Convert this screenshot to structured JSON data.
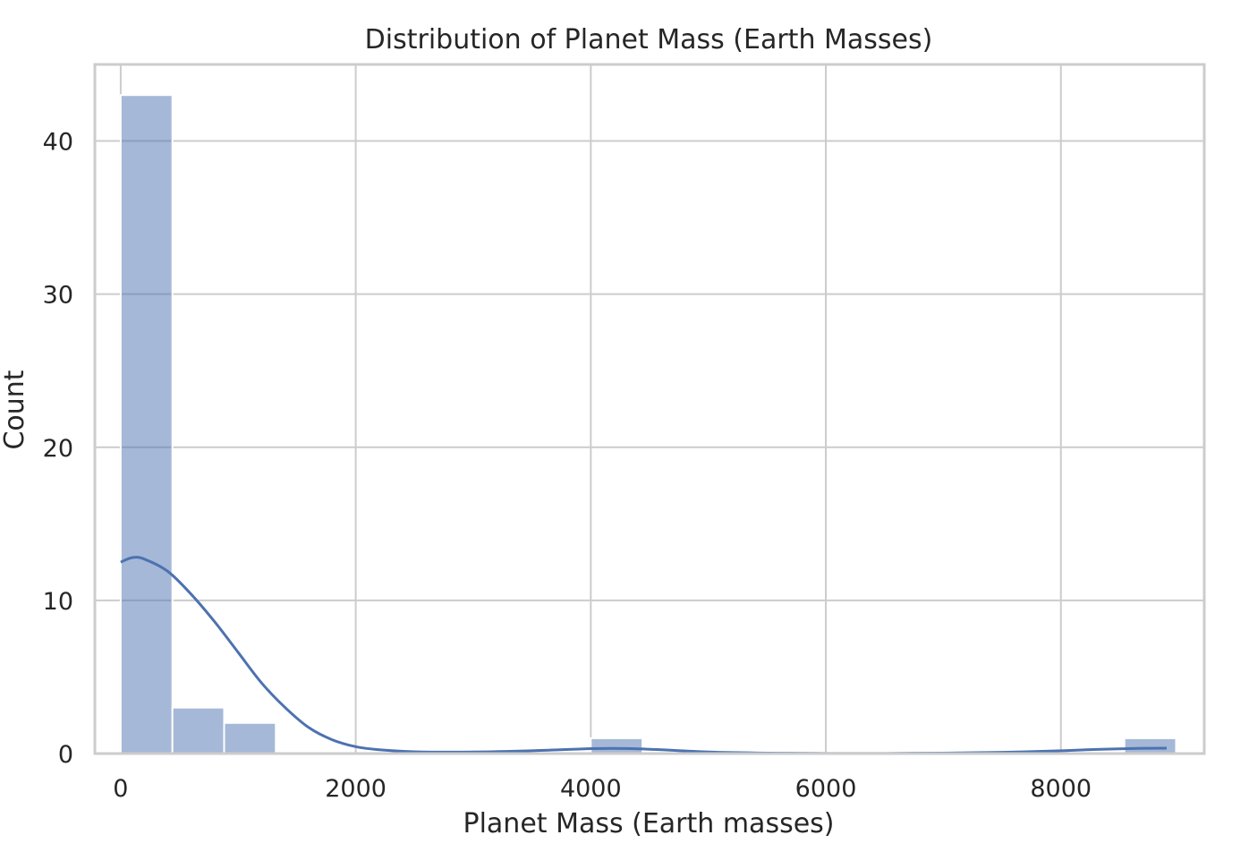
{
  "chart_data": {
    "type": "bar",
    "title": "Distribution of Planet Mass (Earth Masses)",
    "xlabel": "Planet Mass (Earth masses)",
    "ylabel": "Count",
    "xlim": [
      -220,
      9220
    ],
    "ylim": [
      0,
      45
    ],
    "xticks": [
      0,
      2000,
      4000,
      6000,
      8000
    ],
    "yticks": [
      0,
      10,
      20,
      30,
      40
    ],
    "grid": true,
    "bins": [
      {
        "x0": 0,
        "x1": 440,
        "count": 43
      },
      {
        "x0": 440,
        "x1": 880,
        "count": 3
      },
      {
        "x0": 880,
        "x1": 1320,
        "count": 2
      },
      {
        "x0": 4000,
        "x1": 4440,
        "count": 1
      },
      {
        "x0": 8540,
        "x1": 8980,
        "count": 1
      }
    ],
    "kde": {
      "x": [
        0,
        100,
        200,
        400,
        600,
        800,
        1000,
        1200,
        1400,
        1600,
        1800,
        2000,
        2200,
        2500,
        3000,
        3500,
        4000,
        4300,
        4600,
        5000,
        5500,
        6000,
        6500,
        7000,
        7500,
        8000,
        8300,
        8600,
        8900
      ],
      "y": [
        12.5,
        12.8,
        12.7,
        11.9,
        10.4,
        8.6,
        6.6,
        4.6,
        3.0,
        1.7,
        0.9,
        0.45,
        0.25,
        0.12,
        0.1,
        0.18,
        0.32,
        0.33,
        0.25,
        0.1,
        0.03,
        0.01,
        0.01,
        0.03,
        0.08,
        0.18,
        0.27,
        0.33,
        0.35
      ]
    }
  }
}
